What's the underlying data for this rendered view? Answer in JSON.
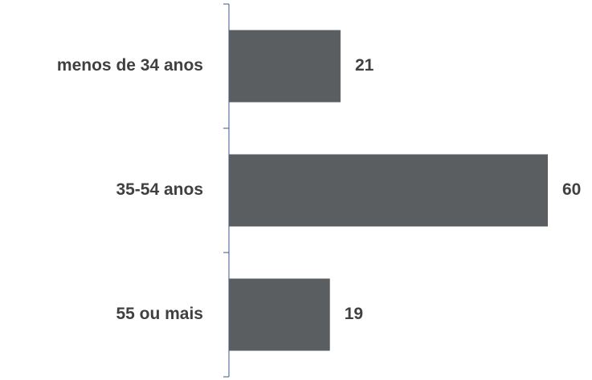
{
  "chart_data": {
    "type": "bar",
    "orientation": "horizontal",
    "categories": [
      "menos de 34 anos",
      "35-54 anos",
      "55 ou mais"
    ],
    "values": [
      21,
      60,
      19
    ],
    "color": "#5a5e61"
  }
}
